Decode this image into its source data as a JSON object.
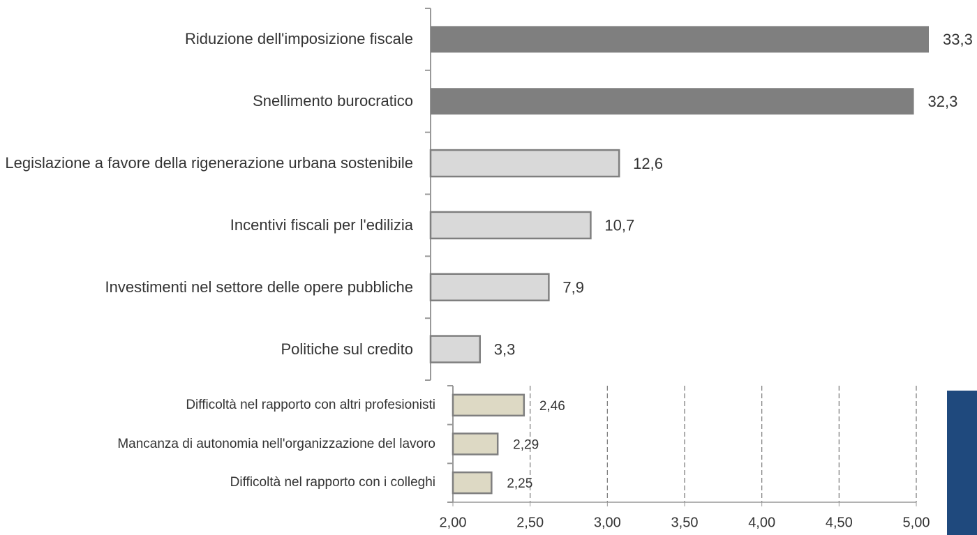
{
  "chart_data": [
    {
      "type": "hbar",
      "categories": [
        "Riduzione dell'imposizione fiscale",
        "Snellimento burocratico",
        "Legislazione a favore della rigenerazione urbana sostenibile",
        "Incentivi fiscali per l'edilizia",
        "Investimenti nel settore delle opere pubbliche",
        "Politiche sul credito"
      ],
      "values": [
        33.3,
        32.3,
        12.6,
        10.7,
        7.9,
        3.3
      ],
      "value_labels": [
        "33,3",
        "32,3",
        "12,6",
        "10,7",
        "7,9",
        "3,3"
      ],
      "colors": [
        "#7f7f7f",
        "#7f7f7f",
        "#d9d9d9",
        "#d9d9d9",
        "#d9d9d9",
        "#d9d9d9"
      ]
    },
    {
      "type": "hbar",
      "categories": [
        "Difficoltà nel rapporto con altri profesionisti",
        "Mancanza di autonomia nell'organizzazione del lavoro",
        "Difficoltà nel rapporto con i colleghi"
      ],
      "values": [
        2.46,
        2.29,
        2.25
      ],
      "value_labels": [
        "2,46",
        "2,29",
        "2,25"
      ],
      "color": "#ddd9c4",
      "xlim": [
        2,
        5
      ],
      "xticks": [
        {
          "value": 2,
          "label": "2,00"
        },
        {
          "value": 2.5,
          "label": "2,50"
        },
        {
          "value": 3,
          "label": "3,00"
        },
        {
          "value": 3.5,
          "label": "3,50"
        },
        {
          "value": 4,
          "label": "4,00"
        },
        {
          "value": 4.5,
          "label": "4,50"
        },
        {
          "value": 5,
          "label": "5,00"
        }
      ],
      "grid": true
    }
  ]
}
